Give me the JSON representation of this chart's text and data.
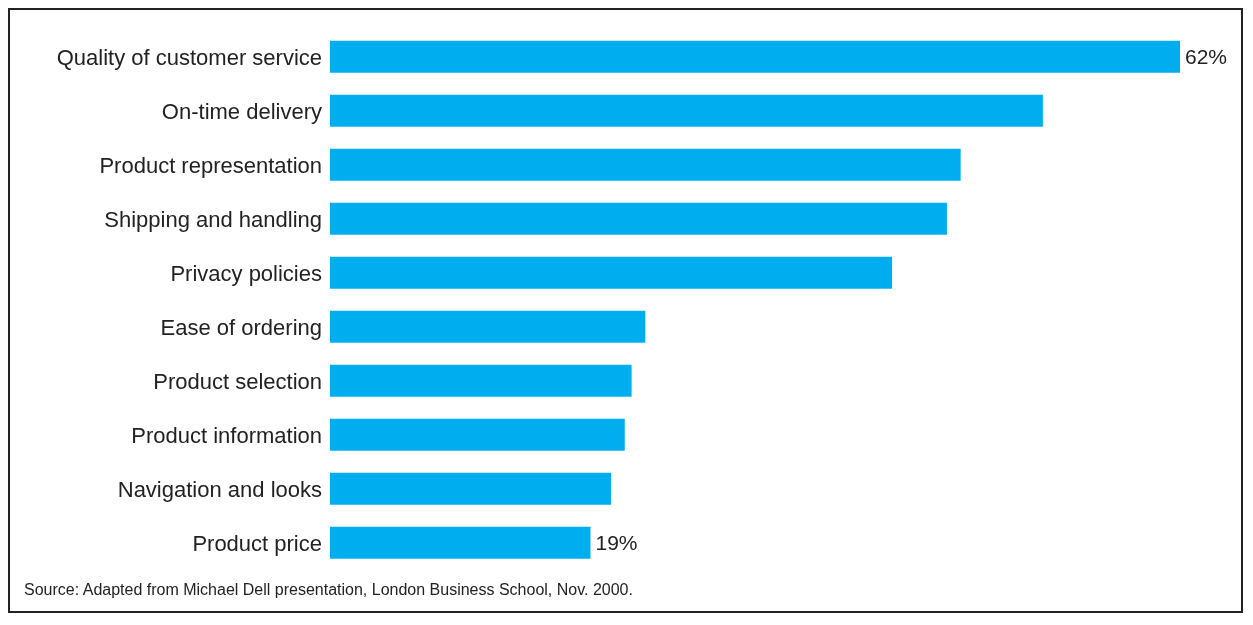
{
  "chart_data": {
    "type": "bar",
    "orientation": "horizontal",
    "categories": [
      "Quality of customer service",
      "On-time delivery",
      "Product representation",
      "Shipping and handling",
      "Privacy policies",
      "Ease of ordering",
      "Product selection",
      "Product information",
      "Navigation and looks",
      "Product price"
    ],
    "values": [
      62,
      52,
      46,
      45,
      41,
      23,
      22,
      21.5,
      20.5,
      19
    ],
    "value_labels": [
      "62%",
      null,
      null,
      null,
      null,
      null,
      null,
      null,
      null,
      "19%"
    ],
    "color": "#00aeef",
    "grid": false,
    "legend": false,
    "annotations": [
      "Source: Adapted from Michael Dell presentation, London Business School, Nov. 2000."
    ]
  }
}
